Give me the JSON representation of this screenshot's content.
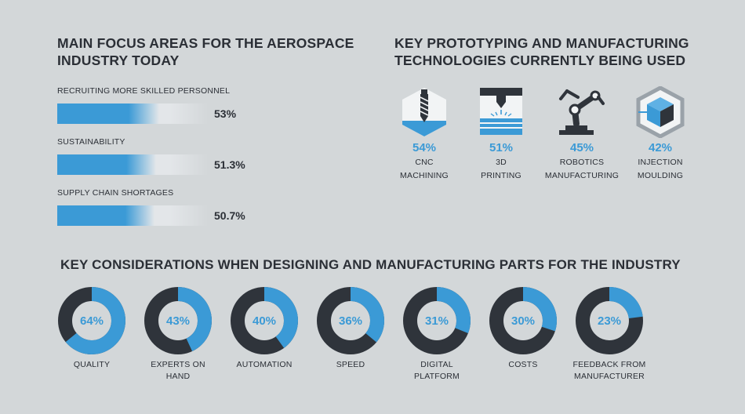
{
  "colors": {
    "accent": "#3b9ad6",
    "dark": "#2f343b",
    "background": "#d3d7d9",
    "track": "#e3e6e9"
  },
  "focus": {
    "title": "MAIN FOCUS AREAS FOR THE AEROSPACE INDUSTRY TODAY"
  },
  "tech": {
    "title": "KEY PROTOTYPING AND MANUFACTURING TECHNOLOGIES CURRENTLY BEING USED",
    "items": [
      {
        "pct_label": "54%",
        "line1": "CNC",
        "line2": "MACHINING",
        "icon": "cnc-drill-icon"
      },
      {
        "pct_label": "51%",
        "line1": "3D",
        "line2": "PRINTING",
        "icon": "3d-printer-icon"
      },
      {
        "pct_label": "45%",
        "line1": "ROBOTICS",
        "line2": "MANUFACTURING",
        "icon": "robot-arm-icon"
      },
      {
        "pct_label": "42%",
        "line1": "INJECTION",
        "line2": "MOULDING",
        "icon": "injection-mould-cube-icon"
      }
    ]
  },
  "considerations": {
    "title": "KEY CONSIDERATIONS WHEN DESIGNING AND MANUFACTURING PARTS FOR THE INDUSTRY"
  },
  "chart_data": [
    {
      "type": "bar",
      "title": "MAIN FOCUS AREAS FOR THE AEROSPACE INDUSTRY TODAY",
      "categories": [
        "RECRUITING MORE SKILLED PERSONNEL",
        "SUSTAINABILITY",
        "SUPPLY CHAIN SHORTAGES"
      ],
      "values": [
        53,
        51.3,
        50.7
      ],
      "value_labels": [
        "53%",
        "51.3%",
        "50.7%"
      ],
      "ylim": [
        0,
        100
      ]
    },
    {
      "type": "pie",
      "title": "KEY CONSIDERATIONS WHEN DESIGNING AND MANUFACTURING PARTS FOR THE INDUSTRY",
      "categories": [
        "QUALITY",
        "EXPERTS ON HAND",
        "AUTOMATION",
        "SPEED",
        "DIGITAL PLATFORM",
        "COSTS",
        "FEEDBACK FROM MANUFACTURER"
      ],
      "label_lines": [
        [
          "QUALITY"
        ],
        [
          "EXPERTS ON",
          "HAND"
        ],
        [
          "AUTOMATION"
        ],
        [
          "SPEED"
        ],
        [
          "DIGITAL",
          "PLATFORM"
        ],
        [
          "COSTS"
        ],
        [
          "FEEDBACK FROM",
          "MANUFACTURER"
        ]
      ],
      "values": [
        64,
        43,
        40,
        36,
        31,
        30,
        23
      ],
      "value_labels": [
        "64%",
        "43%",
        "40%",
        "36%",
        "31%",
        "30%",
        "23%"
      ]
    }
  ]
}
